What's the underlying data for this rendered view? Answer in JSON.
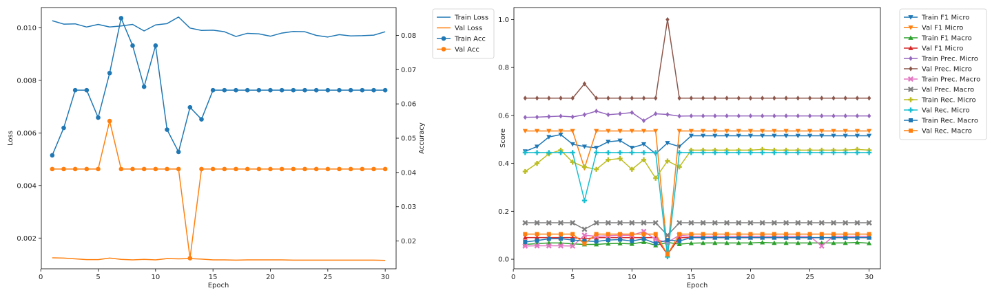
{
  "chart_data": [
    {
      "type": "line",
      "title": "",
      "xlabel": "Epoch",
      "ylabel": "Loss",
      "y2label": "Accuracy",
      "xlim": [
        0.05,
        30.95
      ],
      "ylim": [
        0.00083,
        0.01077
      ],
      "y2lim": [
        0.0119,
        0.0881
      ],
      "xticks": [
        "0",
        "5",
        "10",
        "15",
        "20",
        "25",
        "30"
      ],
      "xtick_values": [
        0,
        5,
        10,
        15,
        20,
        25,
        30
      ],
      "yticks": [
        "0.002",
        "0.004",
        "0.006",
        "0.008",
        "0.010"
      ],
      "ytick_values": [
        0.002,
        0.004,
        0.006,
        0.008,
        0.01
      ],
      "y2ticks": [
        "0.02",
        "0.03",
        "0.04",
        "0.05",
        "0.06",
        "0.07",
        "0.08"
      ],
      "y2tick_values": [
        0.02,
        0.03,
        0.04,
        0.05,
        0.06,
        0.07,
        0.08
      ],
      "legend_position": "outside-right-top",
      "x": [
        1,
        2,
        3,
        4,
        5,
        6,
        7,
        8,
        9,
        10,
        11,
        12,
        13,
        14,
        15,
        16,
        17,
        18,
        19,
        20,
        21,
        22,
        23,
        24,
        25,
        26,
        27,
        28,
        29,
        30
      ],
      "series": [
        {
          "name": "Train Loss",
          "axis": "left",
          "color": "#1f77b4",
          "marker": "none",
          "values": [
            0.01027,
            0.01014,
            0.01015,
            0.01003,
            0.01013,
            0.01003,
            0.01007,
            0.01013,
            0.00988,
            0.01011,
            0.01016,
            0.01041,
            0.00999,
            0.0099,
            0.00991,
            0.00985,
            0.00967,
            0.00979,
            0.00977,
            0.00968,
            0.0098,
            0.00986,
            0.00985,
            0.00971,
            0.00965,
            0.00974,
            0.00969,
            0.0097,
            0.00972,
            0.00985
          ]
        },
        {
          "name": "Val Loss",
          "axis": "left",
          "color": "#ff7f0e",
          "marker": "none",
          "values": [
            0.00125,
            0.00124,
            0.00121,
            0.00118,
            0.00118,
            0.00124,
            0.00119,
            0.00117,
            0.00119,
            0.00117,
            0.00122,
            0.00121,
            0.00122,
            0.0012,
            0.00117,
            0.00117,
            0.00116,
            0.00117,
            0.00117,
            0.00117,
            0.00117,
            0.00116,
            0.00116,
            0.00116,
            0.00116,
            0.00116,
            0.00116,
            0.00116,
            0.00116,
            0.00115
          ]
        },
        {
          "name": "Train Acc",
          "axis": "right",
          "color": "#1f77b4",
          "marker": "circle",
          "values": [
            0.045,
            0.053,
            0.064,
            0.064,
            0.056,
            0.069,
            0.085,
            0.077,
            0.065,
            0.077,
            0.0525,
            0.046,
            0.059,
            0.0555,
            0.064,
            0.064,
            0.064,
            0.064,
            0.064,
            0.064,
            0.064,
            0.064,
            0.064,
            0.064,
            0.064,
            0.064,
            0.064,
            0.064,
            0.064,
            0.064
          ]
        },
        {
          "name": "Val Acc",
          "axis": "right",
          "color": "#ff7f0e",
          "marker": "circle",
          "values": [
            0.041,
            0.041,
            0.041,
            0.041,
            0.041,
            0.055,
            0.041,
            0.041,
            0.041,
            0.041,
            0.041,
            0.041,
            0.015,
            0.041,
            0.041,
            0.041,
            0.041,
            0.041,
            0.041,
            0.041,
            0.041,
            0.041,
            0.041,
            0.041,
            0.041,
            0.041,
            0.041,
            0.041,
            0.041,
            0.041
          ]
        }
      ]
    },
    {
      "type": "line",
      "title": "",
      "xlabel": "Epoch",
      "ylabel": "Score",
      "xlim": [
        0.05,
        30.95
      ],
      "ylim": [
        -0.04,
        1.05
      ],
      "xticks": [
        "0",
        "5",
        "10",
        "15",
        "20",
        "25",
        "30"
      ],
      "xtick_values": [
        0,
        5,
        10,
        15,
        20,
        25,
        30
      ],
      "yticks": [
        "0.0",
        "0.2",
        "0.4",
        "0.6",
        "0.8",
        "1.0"
      ],
      "ytick_values": [
        0.0,
        0.2,
        0.4,
        0.6,
        0.8,
        1.0
      ],
      "legend_position": "outside-right-top",
      "x": [
        1,
        2,
        3,
        4,
        5,
        6,
        7,
        8,
        9,
        10,
        11,
        12,
        13,
        14,
        15,
        16,
        17,
        18,
        19,
        20,
        21,
        22,
        23,
        24,
        25,
        26,
        27,
        28,
        29,
        30
      ],
      "series": [
        {
          "name": "Train F1 Micro",
          "color": "#1f77b4",
          "marker": "tri-down",
          "values": [
            0.45,
            0.47,
            0.51,
            0.52,
            0.48,
            0.47,
            0.465,
            0.49,
            0.495,
            0.465,
            0.48,
            0.44,
            0.485,
            0.47,
            0.515,
            0.515,
            0.515,
            0.515,
            0.515,
            0.515,
            0.515,
            0.515,
            0.515,
            0.515,
            0.515,
            0.515,
            0.515,
            0.515,
            0.515,
            0.515
          ]
        },
        {
          "name": "Val F1 Micro",
          "color": "#ff7f0e",
          "marker": "tri-down",
          "values": [
            0.535,
            0.535,
            0.535,
            0.535,
            0.535,
            0.38,
            0.535,
            0.535,
            0.535,
            0.535,
            0.535,
            0.535,
            0.03,
            0.535,
            0.535,
            0.535,
            0.535,
            0.535,
            0.535,
            0.535,
            0.535,
            0.535,
            0.535,
            0.535,
            0.535,
            0.535,
            0.535,
            0.535,
            0.535,
            0.535
          ]
        },
        {
          "name": "Train F1 Macro",
          "color": "#2ca02c",
          "marker": "tri-up",
          "values": [
            0.062,
            0.065,
            0.068,
            0.068,
            0.064,
            0.062,
            0.062,
            0.065,
            0.066,
            0.064,
            0.072,
            0.058,
            0.07,
            0.063,
            0.067,
            0.068,
            0.068,
            0.068,
            0.068,
            0.068,
            0.07,
            0.068,
            0.068,
            0.068,
            0.068,
            0.068,
            0.068,
            0.068,
            0.07,
            0.067
          ]
        },
        {
          "name": "Val F1 Micro",
          "color": "#d62728",
          "marker": "tri-up",
          "values": [
            0.09,
            0.09,
            0.09,
            0.09,
            0.09,
            0.085,
            0.09,
            0.09,
            0.09,
            0.09,
            0.09,
            0.09,
            0.02,
            0.09,
            0.09,
            0.09,
            0.09,
            0.09,
            0.09,
            0.09,
            0.09,
            0.09,
            0.09,
            0.09,
            0.09,
            0.09,
            0.09,
            0.09,
            0.09,
            0.09
          ]
        },
        {
          "name": "Train Prec. Micro",
          "color": "#9467bd",
          "marker": "diamond",
          "values": [
            0.592,
            0.593,
            0.595,
            0.597,
            0.594,
            0.603,
            0.618,
            0.603,
            0.607,
            0.612,
            0.578,
            0.607,
            0.604,
            0.597,
            0.598,
            0.598,
            0.598,
            0.598,
            0.598,
            0.598,
            0.598,
            0.598,
            0.598,
            0.598,
            0.598,
            0.598,
            0.598,
            0.598,
            0.598,
            0.598
          ]
        },
        {
          "name": "Val Prec. Micro",
          "color": "#8c564b",
          "marker": "diamond",
          "values": [
            0.672,
            0.672,
            0.672,
            0.672,
            0.672,
            0.732,
            0.672,
            0.672,
            0.672,
            0.672,
            0.672,
            0.672,
            1.0,
            0.672,
            0.672,
            0.672,
            0.672,
            0.672,
            0.672,
            0.672,
            0.672,
            0.672,
            0.672,
            0.672,
            0.672,
            0.672,
            0.672,
            0.672,
            0.672,
            0.672
          ]
        },
        {
          "name": "Train Prec. Macro",
          "color": "#e377c2",
          "marker": "x",
          "values": [
            0.055,
            0.056,
            0.056,
            0.056,
            0.055,
            0.1,
            0.096,
            0.098,
            0.1,
            0.1,
            0.116,
            0.083,
            0.07,
            0.1,
            0.096,
            0.096,
            0.096,
            0.096,
            0.096,
            0.096,
            0.096,
            0.096,
            0.096,
            0.096,
            0.096,
            0.055,
            0.096,
            0.096,
            0.096,
            0.096
          ]
        },
        {
          "name": "Val Prec. Macro",
          "color": "#7f7f7f",
          "marker": "x",
          "values": [
            0.152,
            0.152,
            0.152,
            0.152,
            0.152,
            0.125,
            0.152,
            0.152,
            0.152,
            0.152,
            0.152,
            0.152,
            0.1,
            0.152,
            0.152,
            0.152,
            0.152,
            0.152,
            0.152,
            0.152,
            0.152,
            0.152,
            0.152,
            0.152,
            0.152,
            0.152,
            0.152,
            0.152,
            0.152,
            0.152
          ]
        },
        {
          "name": "Train Rec. Micro",
          "color": "#bcbd22",
          "marker": "plus",
          "values": [
            0.366,
            0.4,
            0.44,
            0.455,
            0.405,
            0.385,
            0.375,
            0.415,
            0.42,
            0.375,
            0.415,
            0.338,
            0.41,
            0.385,
            0.455,
            0.455,
            0.455,
            0.455,
            0.455,
            0.455,
            0.458,
            0.455,
            0.455,
            0.455,
            0.455,
            0.455,
            0.455,
            0.455,
            0.458,
            0.455
          ]
        },
        {
          "name": "Val Rec. Micro",
          "color": "#17becf",
          "marker": "plus",
          "values": [
            0.445,
            0.445,
            0.445,
            0.445,
            0.445,
            0.245,
            0.445,
            0.445,
            0.445,
            0.445,
            0.445,
            0.445,
            0.01,
            0.445,
            0.445,
            0.445,
            0.445,
            0.445,
            0.445,
            0.445,
            0.445,
            0.445,
            0.445,
            0.445,
            0.445,
            0.445,
            0.445,
            0.445,
            0.445,
            0.445
          ]
        },
        {
          "name": "Train Rec. Macro",
          "color": "#1f77b4",
          "marker": "square",
          "values": [
            0.072,
            0.078,
            0.085,
            0.086,
            0.08,
            0.076,
            0.074,
            0.08,
            0.082,
            0.076,
            0.085,
            0.066,
            0.08,
            0.076,
            0.09,
            0.09,
            0.09,
            0.09,
            0.09,
            0.09,
            0.09,
            0.09,
            0.09,
            0.09,
            0.09,
            0.09,
            0.09,
            0.09,
            0.09,
            0.09
          ]
        },
        {
          "name": "Val Rec. Macro",
          "color": "#ff7f0e",
          "marker": "square",
          "values": [
            0.105,
            0.105,
            0.105,
            0.105,
            0.105,
            0.065,
            0.105,
            0.105,
            0.105,
            0.105,
            0.105,
            0.105,
            0.02,
            0.105,
            0.105,
            0.105,
            0.105,
            0.105,
            0.105,
            0.105,
            0.105,
            0.105,
            0.105,
            0.105,
            0.105,
            0.105,
            0.105,
            0.105,
            0.105,
            0.105
          ]
        }
      ]
    }
  ]
}
